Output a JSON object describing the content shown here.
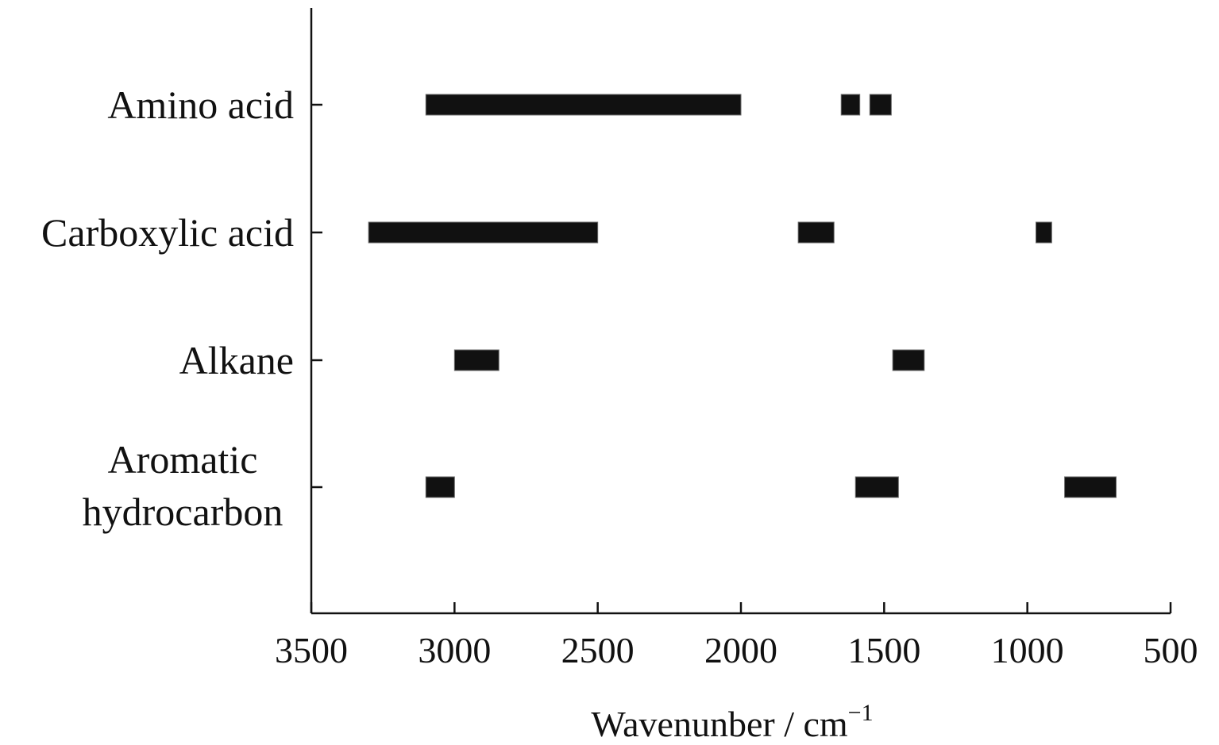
{
  "chart_data": {
    "type": "bar",
    "orientation": "horizontal-range",
    "title": "",
    "xlabel": "Wavenunber / cm",
    "xlabel_superscript": "−1",
    "ylabel": "",
    "xlim": [
      3500,
      500
    ],
    "x_reversed": true,
    "xticks": [
      "3500",
      "3000",
      "2500",
      "2000",
      "1500",
      "1000",
      "500"
    ],
    "categories": [
      {
        "label_lines": [
          "Amino acid"
        ]
      },
      {
        "label_lines": [
          "Carboxylic acid"
        ]
      },
      {
        "label_lines": [
          "Alkane"
        ]
      },
      {
        "label_lines": [
          "Aromatic",
          "hydrocarbon"
        ]
      }
    ],
    "ranges": [
      [
        [
          3100,
          2000
        ],
        [
          1650,
          1585
        ],
        [
          1550,
          1475
        ]
      ],
      [
        [
          3300,
          2500
        ],
        [
          1800,
          1675
        ],
        [
          970,
          915
        ]
      ],
      [
        [
          3000,
          2845
        ],
        [
          1470,
          1360
        ]
      ],
      [
        [
          3100,
          3000
        ],
        [
          1600,
          1450
        ],
        [
          870,
          690
        ]
      ]
    ],
    "grid": false,
    "legend": "none"
  }
}
